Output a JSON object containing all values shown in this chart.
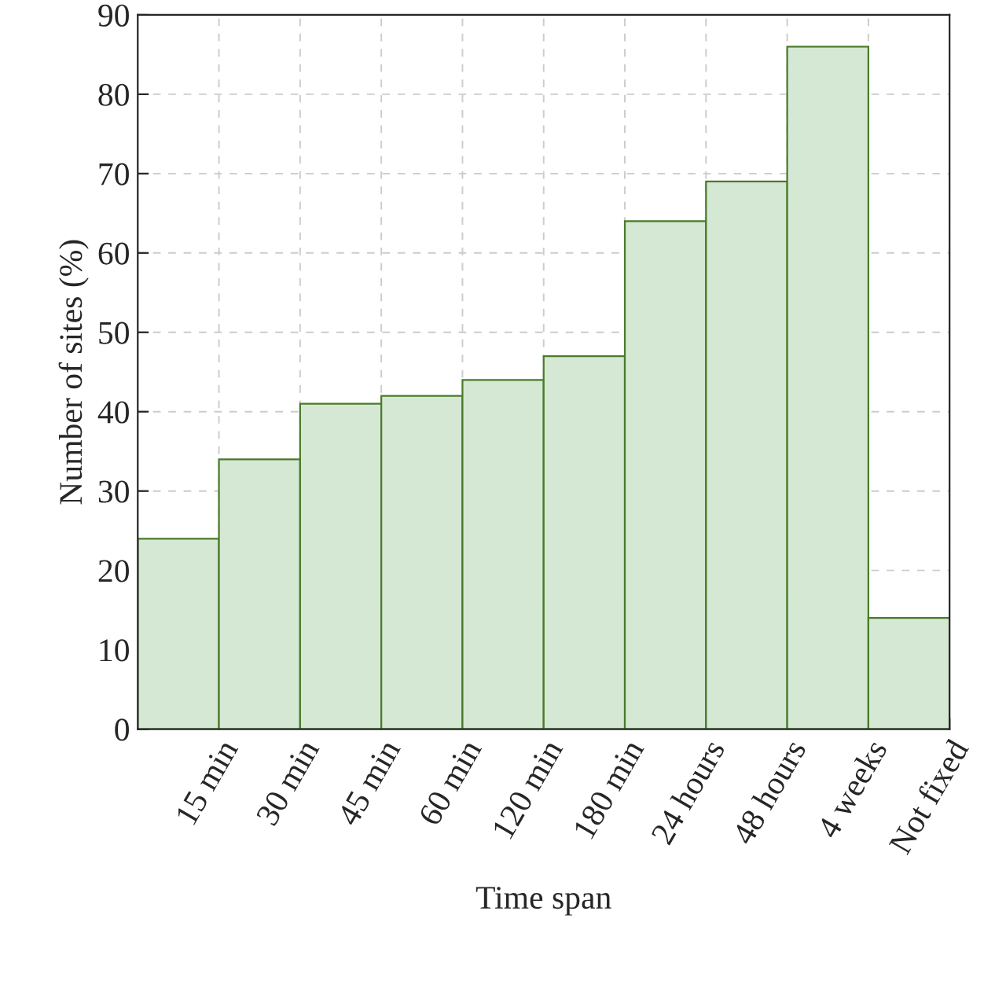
{
  "chart_data": {
    "type": "bar",
    "xlabel": "Time span",
    "ylabel": "Number of sites (%)",
    "categories": [
      "15 min",
      "30 min",
      "45 min",
      "60 min",
      "120 min",
      "180 min",
      "24 hours",
      "48 hours",
      "4 weeks",
      "Not fixed"
    ],
    "values": [
      24,
      34,
      41,
      42,
      44,
      47,
      64,
      69,
      86,
      14
    ],
    "color": "#d5e8d4",
    "ylim": [
      0,
      90
    ],
    "yticks": [
      0,
      10,
      20,
      30,
      40,
      50,
      60,
      70,
      80,
      90
    ],
    "grid": true
  }
}
